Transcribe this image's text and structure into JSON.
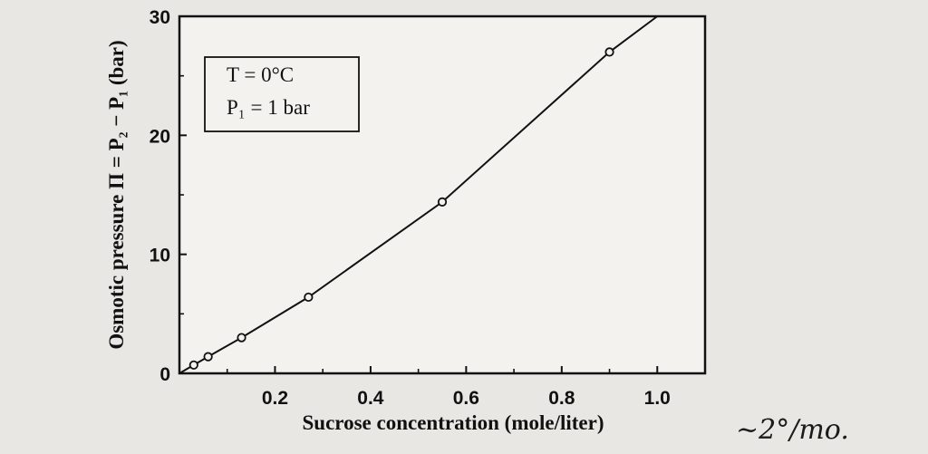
{
  "chart_data": {
    "type": "line",
    "title": "",
    "xlabel": "Sucrose concentration (mole/liter)",
    "ylabel": "Osmotic pressure Π = P₂ − P₁ (bar)",
    "xlim": [
      0,
      1.1
    ],
    "ylim": [
      0,
      30
    ],
    "x_ticks": [
      "0.2",
      "0.4",
      "0.6",
      "0.8",
      "1.0"
    ],
    "x_tick_values": [
      0.2,
      0.4,
      0.6,
      0.8,
      1.0
    ],
    "y_ticks": [
      "0",
      "10",
      "20",
      "30"
    ],
    "y_tick_values": [
      0,
      10,
      20,
      30
    ],
    "series": [
      {
        "x": [
          0.0,
          0.03,
          0.06,
          0.13,
          0.27,
          0.55,
          0.9,
          1.0
        ],
        "y": [
          0.0,
          0.7,
          1.4,
          3.0,
          6.4,
          14.4,
          27.0,
          30.0
        ],
        "marker_indices": [
          1,
          2,
          3,
          4,
          5,
          6
        ]
      }
    ],
    "legend": {
      "placement": "top-left",
      "lines": [
        "T = 0°C",
        "P₁ = 1 bar"
      ]
    },
    "grid": false
  },
  "annotation": "~2°/mo.",
  "colors": {
    "ink": "#111111",
    "paper": "#e9e7e4",
    "plot_bg": "#f3f2ef"
  }
}
